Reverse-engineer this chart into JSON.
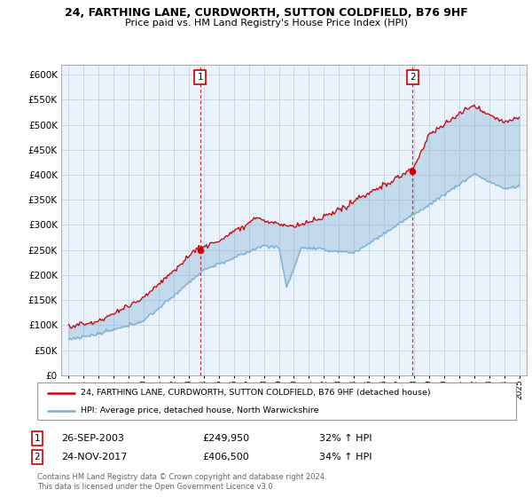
{
  "title": "24, FARTHING LANE, CURDWORTH, SUTTON COLDFIELD, B76 9HF",
  "subtitle": "Price paid vs. HM Land Registry's House Price Index (HPI)",
  "sale1_date": "26-SEP-2003",
  "sale1_price": 249950,
  "sale1_hpi": "32% ↑ HPI",
  "sale2_date": "24-NOV-2017",
  "sale2_price": 406500,
  "sale2_hpi": "34% ↑ HPI",
  "legend_line1": "24, FARTHING LANE, CURDWORTH, SUTTON COLDFIELD, B76 9HF (detached house)",
  "legend_line2": "HPI: Average price, detached house, North Warwickshire",
  "footer": "Contains HM Land Registry data © Crown copyright and database right 2024.\nThis data is licensed under the Open Government Licence v3.0.",
  "red_color": "#cc0000",
  "blue_color": "#7bafd4",
  "fill_color": "#ddeeff",
  "ylim": [
    0,
    620000
  ],
  "yticks": [
    0,
    50000,
    100000,
    150000,
    200000,
    250000,
    300000,
    350000,
    400000,
    450000,
    500000,
    550000,
    600000
  ],
  "sale1_x": 2003.75,
  "sale2_x": 2017.9,
  "start_year": 1995,
  "end_year": 2025
}
